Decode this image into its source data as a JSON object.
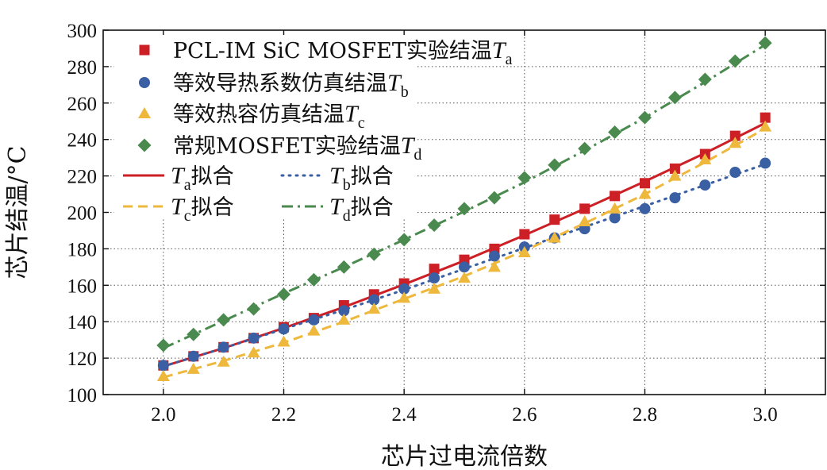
{
  "chart_data": {
    "type": "scatter",
    "xlabel": "芯片过电流倍数",
    "ylabel": "芯片结温/°C",
    "xlim": [
      1.9,
      3.1
    ],
    "ylim": [
      100,
      300
    ],
    "xticks": [
      "2.0",
      "2.2",
      "2.4",
      "2.6",
      "2.8",
      "3.0"
    ],
    "yticks": [
      "100",
      "120",
      "140",
      "160",
      "180",
      "200",
      "220",
      "240",
      "260",
      "280",
      "300"
    ],
    "grid": true,
    "legend_position": "top-left",
    "x": [
      2.0,
      2.05,
      2.1,
      2.15,
      2.2,
      2.25,
      2.3,
      2.35,
      2.4,
      2.45,
      2.5,
      2.55,
      2.6,
      2.65,
      2.7,
      2.75,
      2.8,
      2.85,
      2.9,
      2.95,
      3.0
    ],
    "series": [
      {
        "label_main": "PCL-IM SiC MOSFET实验结温",
        "label_sym": "T",
        "label_sub": "a",
        "marker": "square",
        "color": "#cc1f26",
        "values": [
          116,
          121,
          126,
          131,
          137,
          142,
          149,
          155,
          161,
          169,
          174,
          180,
          188,
          196,
          202,
          209,
          216,
          224,
          232,
          242,
          252
        ]
      },
      {
        "label_main": "等效导热系数仿真结温",
        "label_sym": "T",
        "label_sub": "b",
        "marker": "circle",
        "color": "#3a5fa3",
        "values": [
          116,
          121,
          126,
          131,
          136,
          141,
          146,
          152,
          158,
          164,
          170,
          176,
          181,
          186,
          191,
          197,
          202,
          208,
          215,
          222,
          227
        ]
      },
      {
        "label_main": "等效热容仿真结温",
        "label_sym": "T",
        "label_sub": "c",
        "marker": "triangle",
        "color": "#edb83b",
        "values": [
          110,
          114,
          118,
          123,
          129,
          135,
          141,
          147,
          153,
          158,
          164,
          170,
          178,
          186,
          195,
          202,
          210,
          220,
          229,
          238,
          247
        ]
      },
      {
        "label_main": "常规MOSFET实验结温",
        "label_sym": "T",
        "label_sub": "d",
        "marker": "diamond",
        "color": "#4a8a4e",
        "values": [
          127,
          133,
          141,
          147,
          155,
          163,
          170,
          177,
          185,
          193,
          202,
          208,
          219,
          226,
          235,
          244,
          252,
          263,
          273,
          283,
          293
        ]
      }
    ],
    "fits": [
      {
        "sym": "T",
        "sub": "a",
        "suffix": "拟合",
        "color": "#cc1f26",
        "dash": "solid",
        "points": [
          [
            2.0,
            115.5
          ],
          [
            2.1,
            125.5
          ],
          [
            2.2,
            136.5
          ],
          [
            2.3,
            148
          ],
          [
            2.4,
            160.5
          ],
          [
            2.5,
            173.5
          ],
          [
            2.6,
            187.5
          ],
          [
            2.7,
            202
          ],
          [
            2.8,
            217
          ],
          [
            2.9,
            232.5
          ],
          [
            3.0,
            249
          ]
        ]
      },
      {
        "sym": "T",
        "sub": "b",
        "suffix": "拟合",
        "color": "#3a5fa3",
        "dash": "dot",
        "points": [
          [
            2.0,
            115.5
          ],
          [
            2.1,
            125.5
          ],
          [
            2.2,
            136
          ],
          [
            2.3,
            146.5
          ],
          [
            2.4,
            157.5
          ],
          [
            2.5,
            169
          ],
          [
            2.6,
            180.5
          ],
          [
            2.7,
            192
          ],
          [
            2.8,
            203.5
          ],
          [
            2.9,
            215
          ],
          [
            3.0,
            226.5
          ]
        ]
      },
      {
        "sym": "T",
        "sub": "c",
        "suffix": "拟合",
        "color": "#edb83b",
        "dash": "dash",
        "points": [
          [
            2.0,
            109.5
          ],
          [
            2.1,
            118.5
          ],
          [
            2.2,
            128.5
          ],
          [
            2.3,
            140
          ],
          [
            2.4,
            152.5
          ],
          [
            2.5,
            165
          ],
          [
            2.6,
            179
          ],
          [
            2.7,
            194
          ],
          [
            2.8,
            210
          ],
          [
            2.9,
            227.5
          ],
          [
            3.0,
            246
          ]
        ]
      },
      {
        "sym": "T",
        "sub": "d",
        "suffix": "拟合",
        "color": "#4a8a4e",
        "dash": "dashdot",
        "points": [
          [
            2.0,
            125.5
          ],
          [
            2.1,
            140.5
          ],
          [
            2.2,
            155.5
          ],
          [
            2.3,
            170
          ],
          [
            2.4,
            185
          ],
          [
            2.5,
            200.5
          ],
          [
            2.6,
            216.5
          ],
          [
            2.7,
            234
          ],
          [
            2.8,
            252
          ],
          [
            2.9,
            271.5
          ],
          [
            3.0,
            292
          ]
        ]
      }
    ]
  }
}
